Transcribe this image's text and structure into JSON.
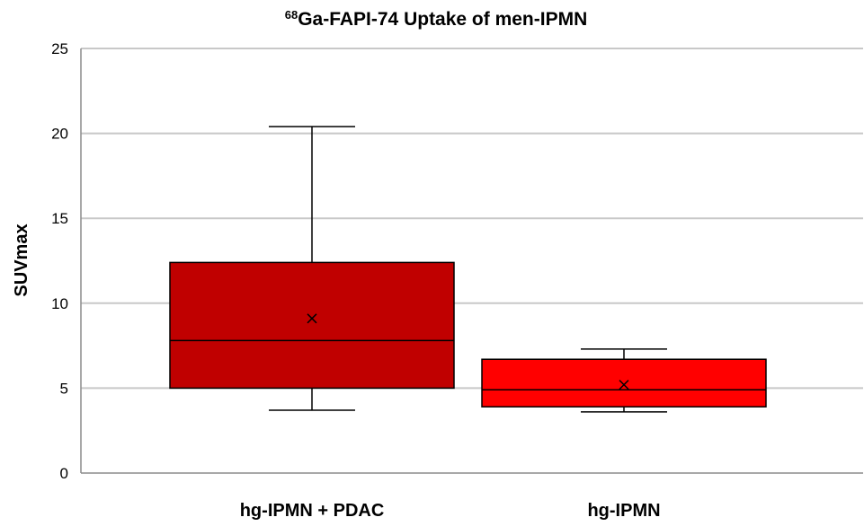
{
  "chart_data": {
    "type": "box",
    "title_superscript": "68",
    "title_main": "Ga-FAPI-74 Uptake of men-IPMN",
    "ylabel": "SUVmax",
    "xlabel": "",
    "ylim": [
      0,
      25
    ],
    "yticks": [
      "0",
      "5",
      "10",
      "15",
      "20",
      "25"
    ],
    "grid": true,
    "categories": [
      "hg-IPMN + PDAC",
      "hg-IPMN"
    ],
    "boxes": [
      {
        "min": 3.7,
        "q1": 5.0,
        "median": 7.8,
        "q3": 12.4,
        "max": 20.4,
        "mean": 9.1,
        "color": "#c00000"
      },
      {
        "min": 3.6,
        "q1": 3.9,
        "median": 4.9,
        "q3": 6.7,
        "max": 7.3,
        "mean": 5.2,
        "color": "#ff0000"
      }
    ]
  }
}
